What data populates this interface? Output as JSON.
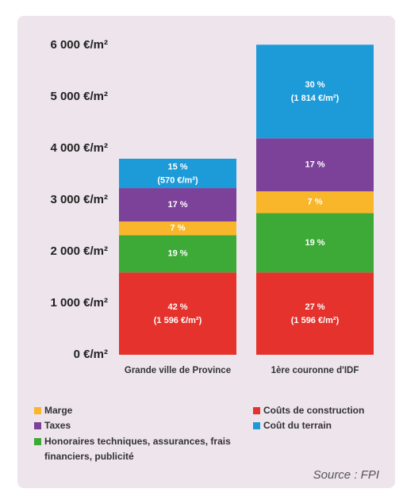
{
  "chart_data": {
    "type": "stacked_bar",
    "categories": [
      "Grande ville de Province",
      "1ère couronne d'IDF"
    ],
    "ylim": [
      0,
      6000
    ],
    "yticks": [
      {
        "value": 0,
        "label": "0 €/m²"
      },
      {
        "value": 1000,
        "label": "1 000 €/m²"
      },
      {
        "value": 2000,
        "label": "2 000 €/m²"
      },
      {
        "value": 3000,
        "label": "3 000 €/m²"
      },
      {
        "value": 4000,
        "label": "4 000 €/m²"
      },
      {
        "value": 5000,
        "label": "5 000 €/m²"
      },
      {
        "value": 6000,
        "label": "6 000 €/m²"
      }
    ],
    "series": [
      {
        "name": "Coûts de construction",
        "color": "#e5322c",
        "values": [
          1596,
          1596
        ],
        "share_labels": [
          "42 %",
          "27 %"
        ],
        "value_labels": [
          "(1 596 €/m²)",
          "(1 596 €/m²)"
        ]
      },
      {
        "name": "Honoraires techniques, assurances, frais financiers, publicité",
        "color": "#3da937",
        "values": [
          722,
          1149
        ],
        "share_labels": [
          "19 %",
          "19 %"
        ]
      },
      {
        "name": "Marge",
        "color": "#fab62a",
        "values": [
          266,
          423
        ],
        "share_labels": [
          "7 %",
          "7 %"
        ]
      },
      {
        "name": "Taxes",
        "color": "#7c4199",
        "values": [
          646,
          1028
        ],
        "share_labels": [
          "17 %",
          "17 %"
        ]
      },
      {
        "name": "Coût du terrain",
        "color": "#1d9bd8",
        "values": [
          570,
          1814
        ],
        "share_labels": [
          "15 %",
          "30 %"
        ],
        "value_labels": [
          "(570 €/m²)",
          "(1 814 €/m²)"
        ]
      }
    ],
    "source": "Source : FPI"
  }
}
